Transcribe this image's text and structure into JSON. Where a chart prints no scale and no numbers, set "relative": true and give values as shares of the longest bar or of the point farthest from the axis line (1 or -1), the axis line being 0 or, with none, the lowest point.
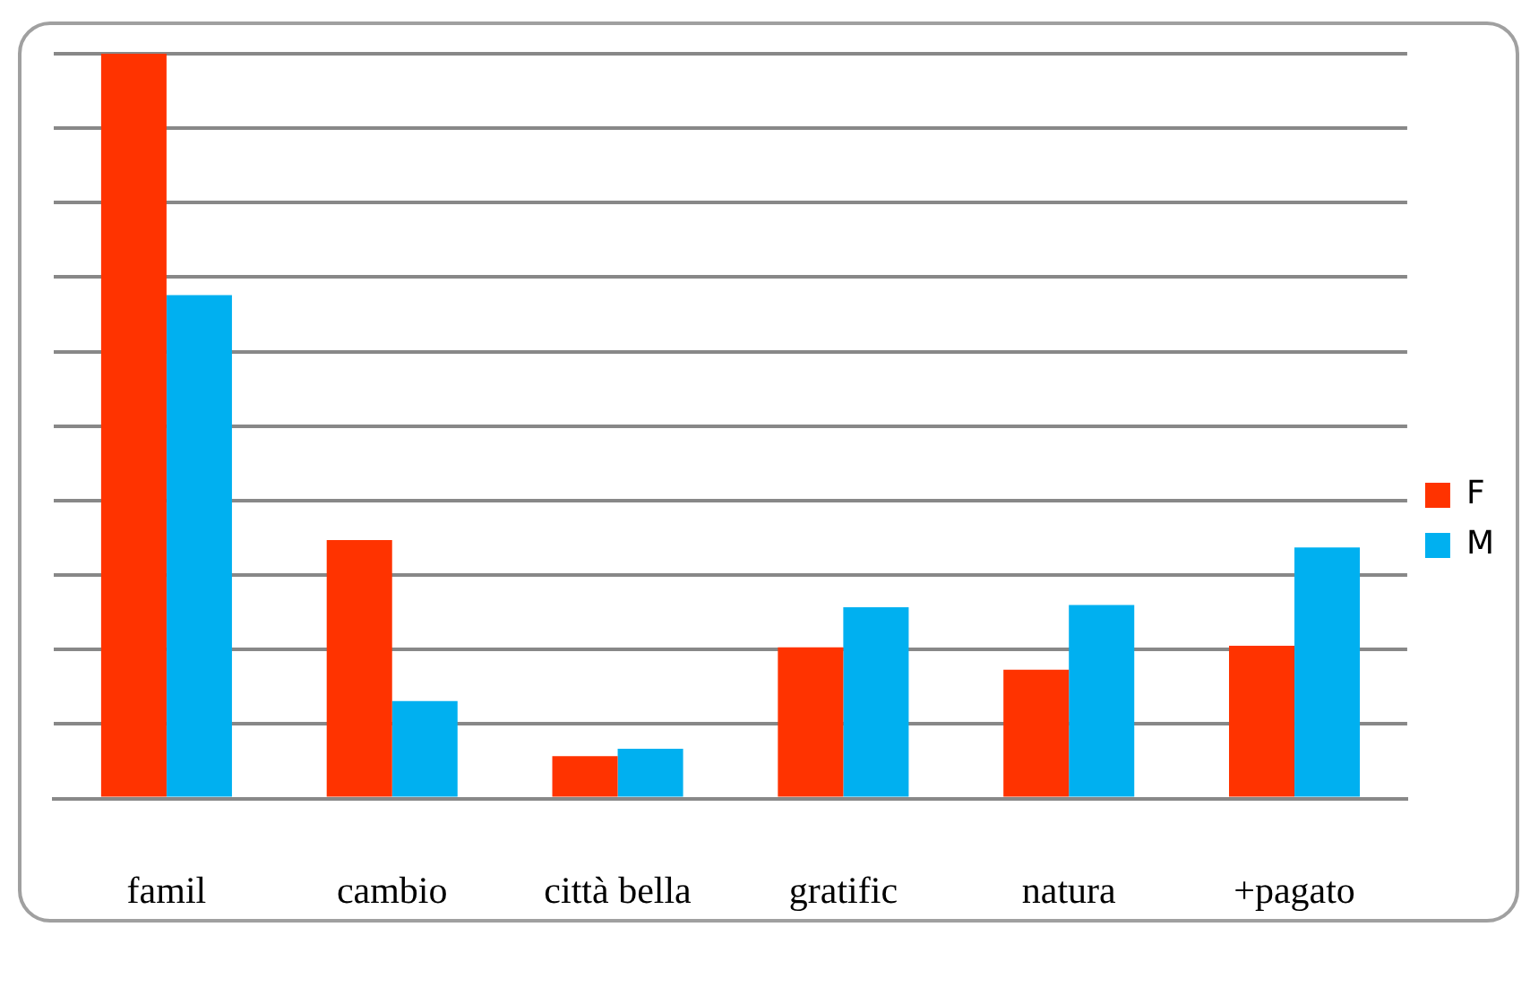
{
  "chart_data": {
    "type": "bar",
    "relative": true,
    "categories": [
      "famil",
      "cambio",
      "città bella",
      "gratific",
      "natura",
      "+pagato"
    ],
    "series": [
      {
        "name": "F",
        "color": "#ff3300",
        "values": [
          1,
          0.347,
          0.057,
          0.203,
          0.173,
          0.205
        ]
      },
      {
        "name": "M",
        "color": "#00b0f0",
        "values": [
          0.676,
          0.131,
          0.067,
          0.257,
          0.26,
          0.337
        ]
      }
    ],
    "grid": "y",
    "legend": "right"
  }
}
